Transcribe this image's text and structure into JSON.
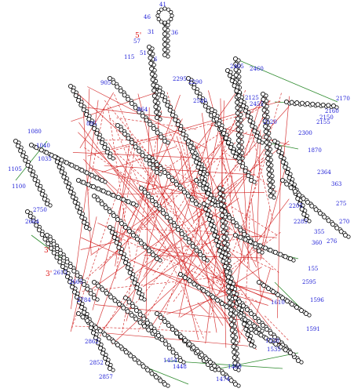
{
  "diagram": {
    "type": "rna-secondary-structure",
    "colors": {
      "background": "#ffffff",
      "backbone": "#101010",
      "nucleotide": "#0d0d0d",
      "number_labels": "#1a1ad6",
      "tertiary_interactions": "#d11a1a",
      "long_range_contacts": "#2e8b2e",
      "ends": "#d11a1a"
    },
    "end_labels": [
      "5'",
      "3'",
      "3'"
    ],
    "position_labels": [
      "41",
      "46",
      "31",
      "36",
      "57",
      "51",
      "6",
      "115",
      "905",
      "2295",
      "2290",
      "2465",
      "2460",
      "2455",
      "2125",
      "2170",
      "2160",
      "2150",
      "2155",
      "2300",
      "2540",
      "864",
      "2120",
      "895",
      "1080",
      "1040",
      "1035",
      "1105",
      "1100",
      "1870",
      "2364",
      "363",
      "275",
      "270",
      "276",
      "2205",
      "2285",
      "2750",
      "2664",
      "355",
      "360",
      "155",
      "2595",
      "1596",
      "1591",
      "2862",
      "2852",
      "2857",
      "1448",
      "1454",
      "1469",
      "1474",
      "2784",
      "2665",
      "2615",
      "1535",
      "1520",
      "1610"
    ]
  }
}
